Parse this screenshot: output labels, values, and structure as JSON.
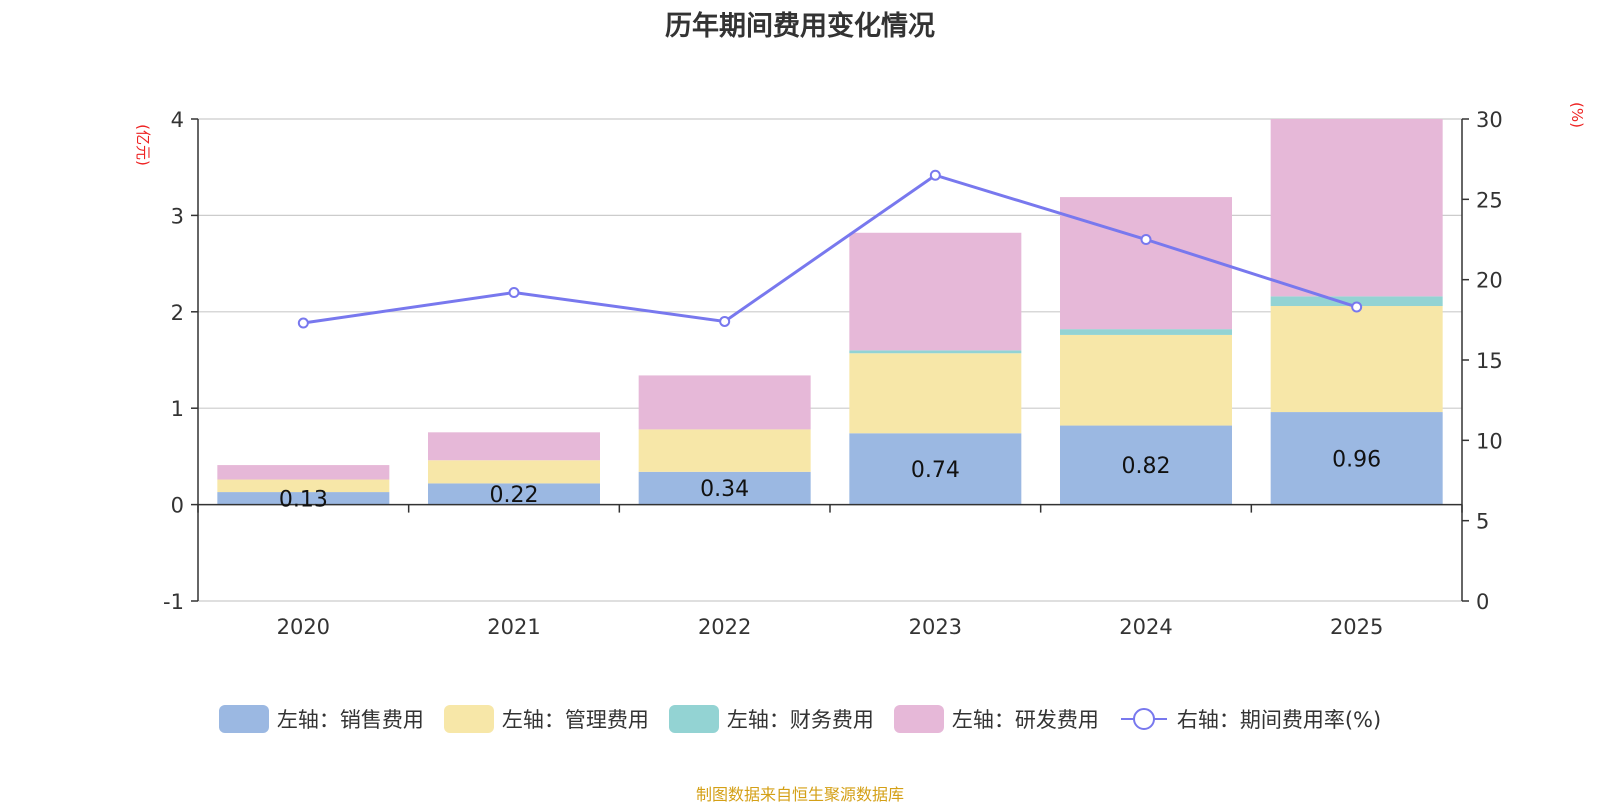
{
  "chart_data": {
    "type": "bar",
    "title": "历年期间费用变化情况",
    "categories": [
      "2020",
      "2021",
      "2022",
      "2023",
      "2024",
      "2025"
    ],
    "left_axis": {
      "label": "(亿元)",
      "ylim": [
        -1,
        4
      ],
      "ticks": [
        "-1",
        "0",
        "1",
        "2",
        "3",
        "4"
      ]
    },
    "right_axis": {
      "label": "(%)",
      "ylim": [
        0,
        30
      ],
      "ticks": [
        "0",
        "5",
        "10",
        "15",
        "20",
        "25",
        "30"
      ]
    },
    "series": [
      {
        "name": "左轴：销售费用",
        "axis": "left",
        "stack": "fee",
        "color": "#9bb8e2",
        "values": [
          0.13,
          0.22,
          0.34,
          0.74,
          0.82,
          0.96
        ],
        "labels": [
          "0.13",
          "0.22",
          "0.34",
          "0.74",
          "0.82",
          "0.96"
        ]
      },
      {
        "name": "左轴：管理费用",
        "axis": "left",
        "stack": "fee",
        "color": "#f7e7a8",
        "values": [
          0.13,
          0.24,
          0.44,
          0.83,
          0.94,
          1.1
        ]
      },
      {
        "name": "左轴：财务费用",
        "axis": "left",
        "stack": "fee",
        "color": "#93d3d3",
        "values": [
          0.0,
          0.0,
          0.0,
          0.03,
          0.06,
          0.1
        ]
      },
      {
        "name": "左轴：研发费用",
        "axis": "left",
        "stack": "fee",
        "color": "#e6b8d8",
        "values": [
          0.15,
          0.29,
          0.56,
          1.22,
          1.37,
          1.84
        ]
      },
      {
        "name": "右轴：期间费用率(%)",
        "axis": "right",
        "type": "line",
        "color": "#7878ee",
        "values": [
          17.3,
          19.2,
          17.4,
          26.5,
          22.5,
          18.3
        ]
      }
    ],
    "grid": true,
    "legend_position": "bottom"
  },
  "source_note": "制图数据来自恒生聚源数据库"
}
